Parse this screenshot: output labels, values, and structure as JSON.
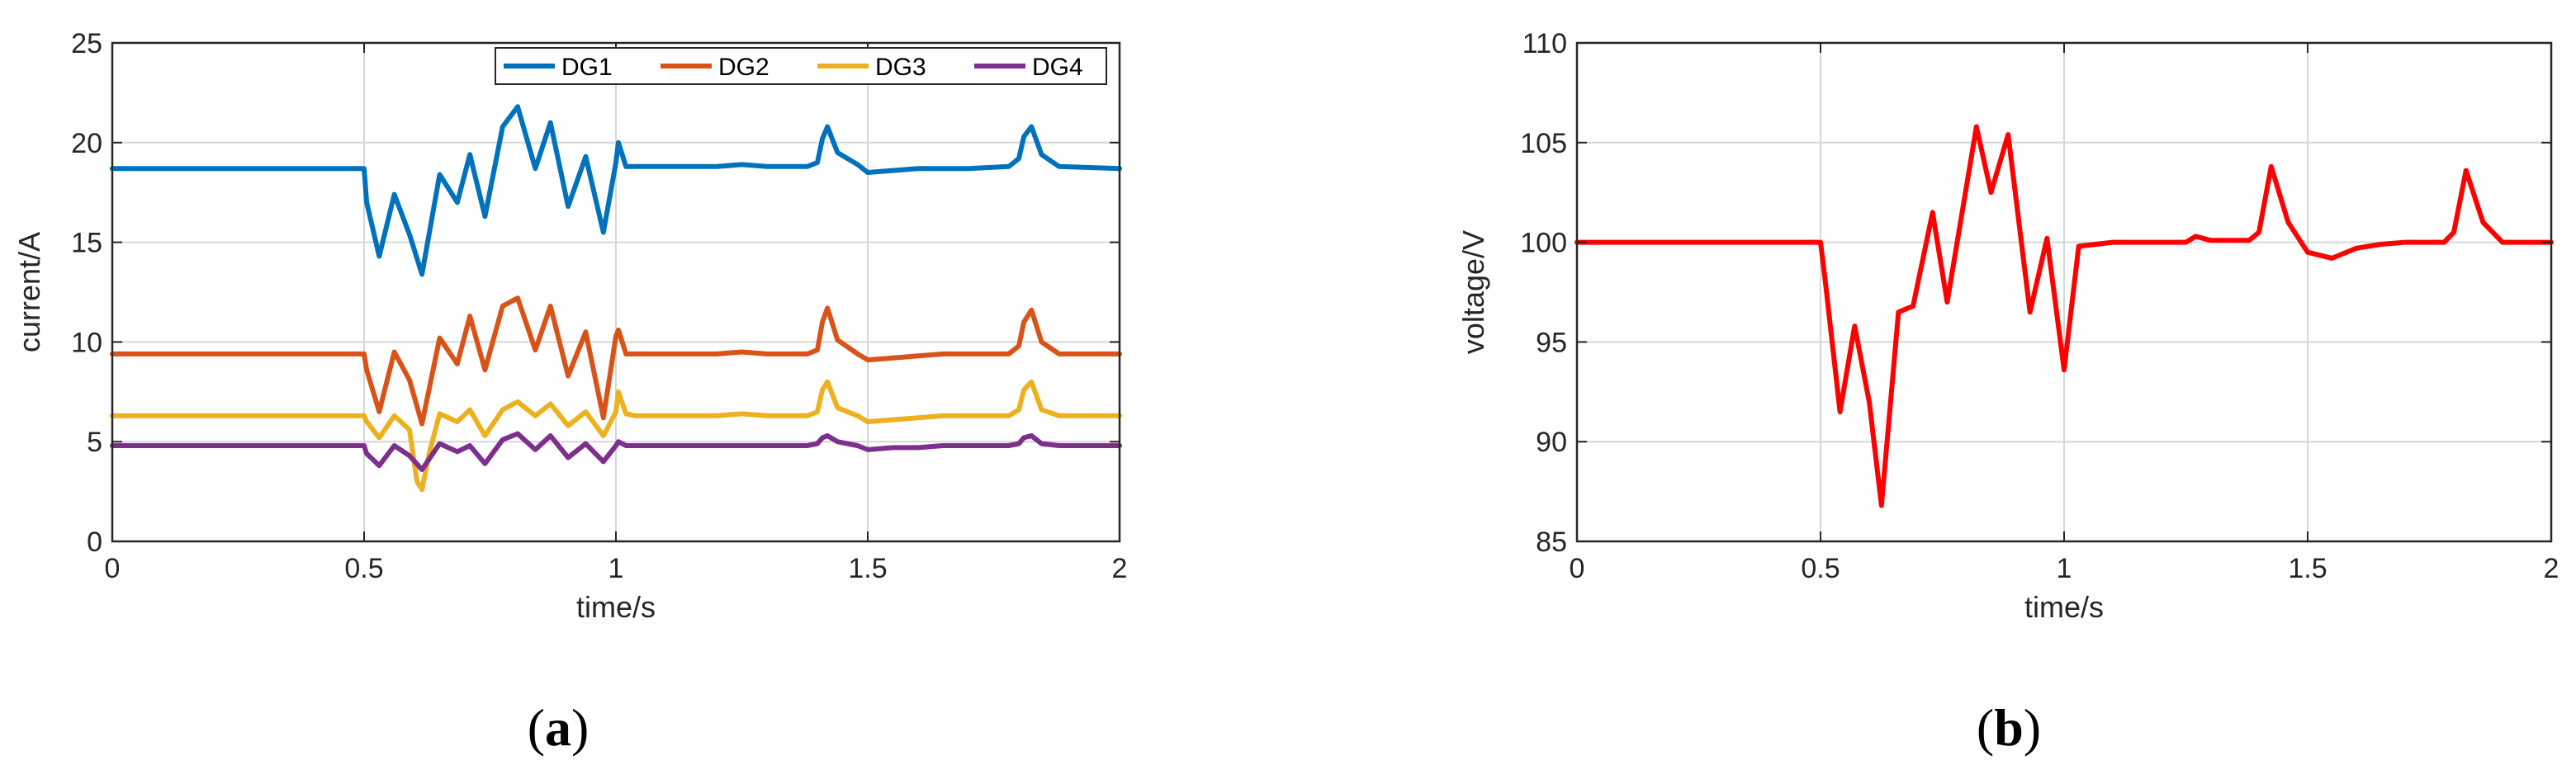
{
  "chart_data": [
    {
      "type": "line",
      "panel_label": "a",
      "xlabel": "time/s",
      "ylabel": "current/A",
      "xlim": [
        0,
        2
      ],
      "ylim": [
        0,
        25
      ],
      "xticks": [
        0,
        0.5,
        1,
        1.5,
        2
      ],
      "xtick_labels": [
        "0",
        "0.5",
        "1",
        "1.5",
        "2"
      ],
      "yticks": [
        0,
        5,
        10,
        15,
        20,
        25
      ],
      "ytick_labels": [
        "0",
        "5",
        "10",
        "15",
        "20",
        "25"
      ],
      "grid": true,
      "legend": "top-right",
      "series": [
        {
          "name": "DG1",
          "color": "#0072BD",
          "x": [
            0,
            0.5,
            0.505,
            0.53,
            0.56,
            0.59,
            0.615,
            0.65,
            0.685,
            0.71,
            0.74,
            0.775,
            0.805,
            0.84,
            0.87,
            0.905,
            0.94,
            0.975,
            1.0,
            1.005,
            1.02,
            1.04,
            1.1,
            1.2,
            1.25,
            1.3,
            1.38,
            1.4,
            1.41,
            1.42,
            1.44,
            1.48,
            1.5,
            1.55,
            1.6,
            1.65,
            1.7,
            1.78,
            1.8,
            1.81,
            1.825,
            1.845,
            1.88,
            2.0
          ],
          "y": [
            18.7,
            18.7,
            17.0,
            14.3,
            17.4,
            15.4,
            13.4,
            18.4,
            17.0,
            19.4,
            16.3,
            20.8,
            21.8,
            18.7,
            21.0,
            16.8,
            19.3,
            15.5,
            19.0,
            20.0,
            18.8,
            18.8,
            18.8,
            18.8,
            18.9,
            18.8,
            18.8,
            19.0,
            20.2,
            20.8,
            19.5,
            18.9,
            18.5,
            18.6,
            18.7,
            18.7,
            18.7,
            18.8,
            19.2,
            20.3,
            20.8,
            19.4,
            18.8,
            18.7
          ]
        },
        {
          "name": "DG2",
          "color": "#D95319",
          "x": [
            0,
            0.5,
            0.505,
            0.53,
            0.56,
            0.59,
            0.615,
            0.65,
            0.685,
            0.71,
            0.74,
            0.775,
            0.805,
            0.84,
            0.87,
            0.905,
            0.94,
            0.975,
            1.0,
            1.005,
            1.02,
            1.04,
            1.1,
            1.2,
            1.25,
            1.3,
            1.38,
            1.4,
            1.41,
            1.42,
            1.44,
            1.48,
            1.5,
            1.55,
            1.6,
            1.65,
            1.7,
            1.78,
            1.8,
            1.81,
            1.825,
            1.845,
            1.88,
            2.0
          ],
          "y": [
            9.4,
            9.4,
            8.6,
            6.5,
            9.5,
            8.1,
            5.9,
            10.2,
            8.9,
            11.3,
            8.6,
            11.8,
            12.2,
            9.6,
            11.8,
            8.3,
            10.5,
            6.2,
            10.3,
            10.6,
            9.4,
            9.4,
            9.4,
            9.4,
            9.5,
            9.4,
            9.4,
            9.6,
            11.0,
            11.7,
            10.1,
            9.4,
            9.1,
            9.2,
            9.3,
            9.4,
            9.4,
            9.4,
            9.8,
            11.0,
            11.6,
            10.0,
            9.4,
            9.4
          ]
        },
        {
          "name": "DG3",
          "color": "#EDB120",
          "x": [
            0,
            0.5,
            0.505,
            0.53,
            0.56,
            0.59,
            0.605,
            0.615,
            0.63,
            0.65,
            0.685,
            0.71,
            0.74,
            0.775,
            0.805,
            0.84,
            0.87,
            0.905,
            0.94,
            0.975,
            1.0,
            1.005,
            1.02,
            1.04,
            1.1,
            1.2,
            1.25,
            1.3,
            1.38,
            1.4,
            1.41,
            1.42,
            1.44,
            1.48,
            1.5,
            1.55,
            1.6,
            1.65,
            1.7,
            1.78,
            1.8,
            1.81,
            1.825,
            1.845,
            1.88,
            2.0
          ],
          "y": [
            6.3,
            6.3,
            6.0,
            5.2,
            6.3,
            5.6,
            3.0,
            2.6,
            4.5,
            6.4,
            6.0,
            6.6,
            5.3,
            6.6,
            7.0,
            6.3,
            6.9,
            5.8,
            6.5,
            5.3,
            6.5,
            7.5,
            6.4,
            6.3,
            6.3,
            6.3,
            6.4,
            6.3,
            6.3,
            6.5,
            7.6,
            8.0,
            6.7,
            6.3,
            6.0,
            6.1,
            6.2,
            6.3,
            6.3,
            6.3,
            6.6,
            7.6,
            8.0,
            6.6,
            6.3,
            6.3
          ]
        },
        {
          "name": "DG4",
          "color": "#7E2F8E",
          "x": [
            0,
            0.5,
            0.505,
            0.53,
            0.56,
            0.59,
            0.615,
            0.65,
            0.685,
            0.71,
            0.74,
            0.775,
            0.805,
            0.84,
            0.87,
            0.905,
            0.94,
            0.975,
            1.0,
            1.005,
            1.02,
            1.04,
            1.1,
            1.2,
            1.25,
            1.3,
            1.38,
            1.4,
            1.41,
            1.42,
            1.44,
            1.48,
            1.5,
            1.55,
            1.6,
            1.65,
            1.7,
            1.78,
            1.8,
            1.81,
            1.825,
            1.845,
            1.88,
            2.0
          ],
          "y": [
            4.8,
            4.8,
            4.4,
            3.8,
            4.8,
            4.3,
            3.6,
            4.9,
            4.5,
            4.8,
            3.9,
            5.1,
            5.4,
            4.6,
            5.3,
            4.2,
            4.9,
            4.0,
            4.8,
            5.0,
            4.8,
            4.8,
            4.8,
            4.8,
            4.8,
            4.8,
            4.8,
            4.9,
            5.2,
            5.3,
            5.0,
            4.8,
            4.6,
            4.7,
            4.7,
            4.8,
            4.8,
            4.8,
            4.9,
            5.2,
            5.3,
            4.9,
            4.8,
            4.8
          ]
        }
      ]
    },
    {
      "type": "line",
      "panel_label": "b",
      "xlabel": "time/s",
      "ylabel": "voltage/V",
      "xlim": [
        0,
        2
      ],
      "ylim": [
        85,
        110
      ],
      "xticks": [
        0,
        0.5,
        1,
        1.5,
        2
      ],
      "xtick_labels": [
        "0",
        "0.5",
        "1",
        "1.5",
        "2"
      ],
      "yticks": [
        85,
        90,
        95,
        100,
        105,
        110
      ],
      "ytick_labels": [
        "85",
        "90",
        "95",
        "100",
        "105",
        "110"
      ],
      "grid": true,
      "series": [
        {
          "color": "#FF0000",
          "x": [
            0,
            0.5,
            0.51,
            0.54,
            0.57,
            0.6,
            0.625,
            0.66,
            0.69,
            0.73,
            0.76,
            0.82,
            0.85,
            0.885,
            0.93,
            0.965,
            1.0,
            1.03,
            1.1,
            1.2,
            1.25,
            1.27,
            1.3,
            1.38,
            1.4,
            1.425,
            1.46,
            1.5,
            1.55,
            1.6,
            1.65,
            1.7,
            1.78,
            1.8,
            1.825,
            1.86,
            1.9,
            2.0
          ],
          "y": [
            100.0,
            100.0,
            98.0,
            91.5,
            95.8,
            92.0,
            86.8,
            96.5,
            96.8,
            101.5,
            97.0,
            105.8,
            102.5,
            105.4,
            96.5,
            100.2,
            93.6,
            99.8,
            100.0,
            100.0,
            100.0,
            100.3,
            100.1,
            100.1,
            100.5,
            103.8,
            101.0,
            99.5,
            99.2,
            99.7,
            99.9,
            100.0,
            100.0,
            100.5,
            103.6,
            101.0,
            100.0,
            100.0
          ]
        }
      ]
    }
  ]
}
